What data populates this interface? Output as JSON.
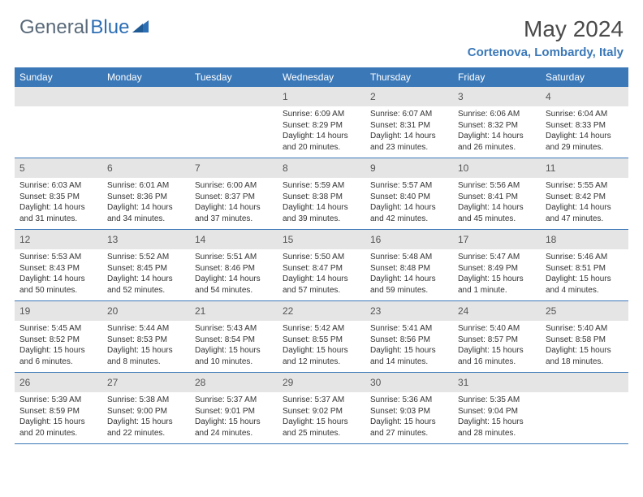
{
  "logo": {
    "text_gray": "General",
    "text_blue": "Blue"
  },
  "header": {
    "month_year": "May 2024",
    "location": "Cortenova, Lombardy, Italy"
  },
  "colors": {
    "header_bg": "#3a78b8",
    "daynum_bg": "#e5e5e5",
    "rule": "#3a78b8"
  },
  "weekdays": [
    "Sunday",
    "Monday",
    "Tuesday",
    "Wednesday",
    "Thursday",
    "Friday",
    "Saturday"
  ],
  "weeks": [
    [
      {
        "n": "",
        "sr": "",
        "ss": "",
        "dl": ""
      },
      {
        "n": "",
        "sr": "",
        "ss": "",
        "dl": ""
      },
      {
        "n": "",
        "sr": "",
        "ss": "",
        "dl": ""
      },
      {
        "n": "1",
        "sr": "Sunrise: 6:09 AM",
        "ss": "Sunset: 8:29 PM",
        "dl": "Daylight: 14 hours and 20 minutes."
      },
      {
        "n": "2",
        "sr": "Sunrise: 6:07 AM",
        "ss": "Sunset: 8:31 PM",
        "dl": "Daylight: 14 hours and 23 minutes."
      },
      {
        "n": "3",
        "sr": "Sunrise: 6:06 AM",
        "ss": "Sunset: 8:32 PM",
        "dl": "Daylight: 14 hours and 26 minutes."
      },
      {
        "n": "4",
        "sr": "Sunrise: 6:04 AM",
        "ss": "Sunset: 8:33 PM",
        "dl": "Daylight: 14 hours and 29 minutes."
      }
    ],
    [
      {
        "n": "5",
        "sr": "Sunrise: 6:03 AM",
        "ss": "Sunset: 8:35 PM",
        "dl": "Daylight: 14 hours and 31 minutes."
      },
      {
        "n": "6",
        "sr": "Sunrise: 6:01 AM",
        "ss": "Sunset: 8:36 PM",
        "dl": "Daylight: 14 hours and 34 minutes."
      },
      {
        "n": "7",
        "sr": "Sunrise: 6:00 AM",
        "ss": "Sunset: 8:37 PM",
        "dl": "Daylight: 14 hours and 37 minutes."
      },
      {
        "n": "8",
        "sr": "Sunrise: 5:59 AM",
        "ss": "Sunset: 8:38 PM",
        "dl": "Daylight: 14 hours and 39 minutes."
      },
      {
        "n": "9",
        "sr": "Sunrise: 5:57 AM",
        "ss": "Sunset: 8:40 PM",
        "dl": "Daylight: 14 hours and 42 minutes."
      },
      {
        "n": "10",
        "sr": "Sunrise: 5:56 AM",
        "ss": "Sunset: 8:41 PM",
        "dl": "Daylight: 14 hours and 45 minutes."
      },
      {
        "n": "11",
        "sr": "Sunrise: 5:55 AM",
        "ss": "Sunset: 8:42 PM",
        "dl": "Daylight: 14 hours and 47 minutes."
      }
    ],
    [
      {
        "n": "12",
        "sr": "Sunrise: 5:53 AM",
        "ss": "Sunset: 8:43 PM",
        "dl": "Daylight: 14 hours and 50 minutes."
      },
      {
        "n": "13",
        "sr": "Sunrise: 5:52 AM",
        "ss": "Sunset: 8:45 PM",
        "dl": "Daylight: 14 hours and 52 minutes."
      },
      {
        "n": "14",
        "sr": "Sunrise: 5:51 AM",
        "ss": "Sunset: 8:46 PM",
        "dl": "Daylight: 14 hours and 54 minutes."
      },
      {
        "n": "15",
        "sr": "Sunrise: 5:50 AM",
        "ss": "Sunset: 8:47 PM",
        "dl": "Daylight: 14 hours and 57 minutes."
      },
      {
        "n": "16",
        "sr": "Sunrise: 5:48 AM",
        "ss": "Sunset: 8:48 PM",
        "dl": "Daylight: 14 hours and 59 minutes."
      },
      {
        "n": "17",
        "sr": "Sunrise: 5:47 AM",
        "ss": "Sunset: 8:49 PM",
        "dl": "Daylight: 15 hours and 1 minute."
      },
      {
        "n": "18",
        "sr": "Sunrise: 5:46 AM",
        "ss": "Sunset: 8:51 PM",
        "dl": "Daylight: 15 hours and 4 minutes."
      }
    ],
    [
      {
        "n": "19",
        "sr": "Sunrise: 5:45 AM",
        "ss": "Sunset: 8:52 PM",
        "dl": "Daylight: 15 hours and 6 minutes."
      },
      {
        "n": "20",
        "sr": "Sunrise: 5:44 AM",
        "ss": "Sunset: 8:53 PM",
        "dl": "Daylight: 15 hours and 8 minutes."
      },
      {
        "n": "21",
        "sr": "Sunrise: 5:43 AM",
        "ss": "Sunset: 8:54 PM",
        "dl": "Daylight: 15 hours and 10 minutes."
      },
      {
        "n": "22",
        "sr": "Sunrise: 5:42 AM",
        "ss": "Sunset: 8:55 PM",
        "dl": "Daylight: 15 hours and 12 minutes."
      },
      {
        "n": "23",
        "sr": "Sunrise: 5:41 AM",
        "ss": "Sunset: 8:56 PM",
        "dl": "Daylight: 15 hours and 14 minutes."
      },
      {
        "n": "24",
        "sr": "Sunrise: 5:40 AM",
        "ss": "Sunset: 8:57 PM",
        "dl": "Daylight: 15 hours and 16 minutes."
      },
      {
        "n": "25",
        "sr": "Sunrise: 5:40 AM",
        "ss": "Sunset: 8:58 PM",
        "dl": "Daylight: 15 hours and 18 minutes."
      }
    ],
    [
      {
        "n": "26",
        "sr": "Sunrise: 5:39 AM",
        "ss": "Sunset: 8:59 PM",
        "dl": "Daylight: 15 hours and 20 minutes."
      },
      {
        "n": "27",
        "sr": "Sunrise: 5:38 AM",
        "ss": "Sunset: 9:00 PM",
        "dl": "Daylight: 15 hours and 22 minutes."
      },
      {
        "n": "28",
        "sr": "Sunrise: 5:37 AM",
        "ss": "Sunset: 9:01 PM",
        "dl": "Daylight: 15 hours and 24 minutes."
      },
      {
        "n": "29",
        "sr": "Sunrise: 5:37 AM",
        "ss": "Sunset: 9:02 PM",
        "dl": "Daylight: 15 hours and 25 minutes."
      },
      {
        "n": "30",
        "sr": "Sunrise: 5:36 AM",
        "ss": "Sunset: 9:03 PM",
        "dl": "Daylight: 15 hours and 27 minutes."
      },
      {
        "n": "31",
        "sr": "Sunrise: 5:35 AM",
        "ss": "Sunset: 9:04 PM",
        "dl": "Daylight: 15 hours and 28 minutes."
      },
      {
        "n": "",
        "sr": "",
        "ss": "",
        "dl": ""
      }
    ]
  ]
}
